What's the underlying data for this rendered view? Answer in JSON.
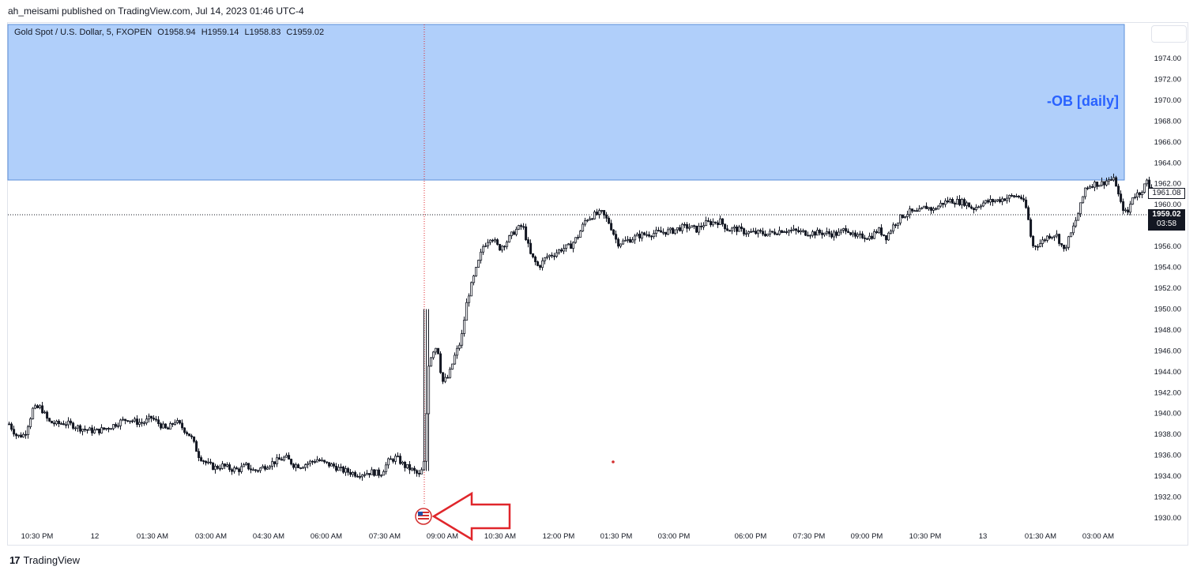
{
  "header": {
    "published_text": "ah_meisami published on TradingView.com, Jul 14, 2023 01:46 UTC-4"
  },
  "legend": {
    "symbol": "Gold Spot / U.S. Dollar, 5, FXOPEN",
    "open": "O1958.94",
    "high": "H1959.14",
    "low": "L1958.83",
    "close": "C1959.02"
  },
  "annotation": {
    "zone_label": "-OB [daily]"
  },
  "price_badges": {
    "current_price": "1959.02",
    "countdown": "03:58",
    "secondary_price": "1961.08"
  },
  "footer": {
    "brand": "TradingView"
  },
  "colors": {
    "zone_fill": "#b0cffa",
    "zone_border": "#5b8fd8",
    "zone_label": "#2962ff",
    "arrow": "#e0262b",
    "candle": "#131722",
    "event_marker": "#d32f2f"
  },
  "chart_data": {
    "type": "candlestick",
    "y_ticks": [
      "1930.00",
      "1932.00",
      "1934.00",
      "1936.00",
      "1938.00",
      "1940.00",
      "1942.00",
      "1944.00",
      "1946.00",
      "1948.00",
      "1950.00",
      "1952.00",
      "1954.00",
      "1956.00",
      "1958.00",
      "1960.00",
      "1962.00",
      "1964.00",
      "1966.00",
      "1968.00",
      "1970.00",
      "1972.00",
      "1974.00"
    ],
    "ylim": [
      1929.5,
      1975.5
    ],
    "x_ticks": [
      "10:30 PM",
      "12",
      "01:30 AM",
      "03:00 AM",
      "04:30 AM",
      "06:00 AM",
      "07:30 AM",
      "09:00 AM",
      "10:30 AM",
      "12:00 PM",
      "01:30 PM",
      "03:00 PM",
      "06:00 PM",
      "07:30 PM",
      "09:00 PM",
      "10:30 PM",
      "13",
      "01:30 AM",
      "03:00 AM"
    ],
    "zone": {
      "label": "-OB [daily]",
      "low": 1962.4,
      "high": 1977.0
    },
    "current_price": 1959.02,
    "event_x_label": "09:00 AM",
    "grid": false,
    "close_path": [
      [
        0,
        1939.0
      ],
      [
        10,
        1937.8
      ],
      [
        20,
        1938.0
      ],
      [
        30,
        1940.4
      ],
      [
        40,
        1940.6
      ],
      [
        50,
        1939.2
      ],
      [
        60,
        1939.0
      ],
      [
        70,
        1939.1
      ],
      [
        80,
        1938.9
      ],
      [
        90,
        1938.6
      ],
      [
        100,
        1938.4
      ],
      [
        110,
        1938.3
      ],
      [
        120,
        1938.5
      ],
      [
        130,
        1938.8
      ],
      [
        140,
        1939.2
      ],
      [
        150,
        1939.5
      ],
      [
        160,
        1939.2
      ],
      [
        170,
        1939.1
      ],
      [
        180,
        1939.6
      ],
      [
        190,
        1939.0
      ],
      [
        200,
        1938.4
      ],
      [
        210,
        1939.3
      ],
      [
        220,
        1938.6
      ],
      [
        230,
        1937.8
      ],
      [
        240,
        1936.0
      ],
      [
        250,
        1935.2
      ],
      [
        260,
        1934.8
      ],
      [
        270,
        1935.0
      ],
      [
        280,
        1934.7
      ],
      [
        290,
        1934.6
      ],
      [
        300,
        1935.0
      ],
      [
        310,
        1934.5
      ],
      [
        320,
        1934.8
      ],
      [
        330,
        1935.2
      ],
      [
        340,
        1935.5
      ],
      [
        350,
        1935.8
      ],
      [
        360,
        1935.1
      ],
      [
        370,
        1935.0
      ],
      [
        380,
        1935.3
      ],
      [
        390,
        1935.6
      ],
      [
        400,
        1935.2
      ],
      [
        410,
        1935.0
      ],
      [
        420,
        1934.6
      ],
      [
        430,
        1934.4
      ],
      [
        440,
        1934.2
      ],
      [
        450,
        1934.3
      ],
      [
        460,
        1934.4
      ],
      [
        470,
        1934.2
      ],
      [
        480,
        1935.4
      ],
      [
        490,
        1935.8
      ],
      [
        500,
        1935.0
      ],
      [
        510,
        1934.6
      ],
      [
        520,
        1934.0
      ],
      [
        526,
        1935.5
      ],
      [
        530,
        1944.5
      ],
      [
        536,
        1946.0
      ],
      [
        542,
        1946.5
      ],
      [
        548,
        1943.0
      ],
      [
        556,
        1943.5
      ],
      [
        564,
        1945.5
      ],
      [
        572,
        1947.0
      ],
      [
        580,
        1951.0
      ],
      [
        590,
        1953.5
      ],
      [
        600,
        1956.0
      ],
      [
        610,
        1957.0
      ],
      [
        620,
        1955.8
      ],
      [
        630,
        1956.5
      ],
      [
        640,
        1957.5
      ],
      [
        650,
        1958.0
      ],
      [
        660,
        1955.2
      ],
      [
        670,
        1954.0
      ],
      [
        680,
        1955.0
      ],
      [
        690,
        1955.3
      ],
      [
        700,
        1955.8
      ],
      [
        710,
        1956.0
      ],
      [
        720,
        1957.0
      ],
      [
        730,
        1958.6
      ],
      [
        740,
        1959.0
      ],
      [
        750,
        1959.2
      ],
      [
        760,
        1958.2
      ],
      [
        770,
        1956.3
      ],
      [
        780,
        1956.5
      ],
      [
        790,
        1956.8
      ],
      [
        800,
        1957.1
      ],
      [
        810,
        1957.2
      ],
      [
        820,
        1957.3
      ],
      [
        830,
        1957.4
      ],
      [
        840,
        1957.5
      ],
      [
        850,
        1957.8
      ],
      [
        860,
        1957.9
      ],
      [
        870,
        1957.6
      ],
      [
        880,
        1958.2
      ],
      [
        890,
        1958.3
      ],
      [
        900,
        1958.4
      ],
      [
        910,
        1957.6
      ],
      [
        920,
        1957.7
      ],
      [
        930,
        1957.4
      ],
      [
        940,
        1957.3
      ],
      [
        950,
        1957.3
      ],
      [
        960,
        1957.2
      ],
      [
        970,
        1957.4
      ],
      [
        980,
        1957.6
      ],
      [
        990,
        1957.5
      ],
      [
        1000,
        1957.4
      ],
      [
        1010,
        1957.3
      ],
      [
        1020,
        1957.3
      ],
      [
        1030,
        1957.3
      ],
      [
        1040,
        1957.2
      ],
      [
        1050,
        1957.2
      ],
      [
        1060,
        1957.8
      ],
      [
        1070,
        1956.8
      ],
      [
        1080,
        1957.0
      ],
      [
        1090,
        1956.9
      ],
      [
        1100,
        1957.6
      ],
      [
        1110,
        1956.9
      ],
      [
        1120,
        1958.1
      ],
      [
        1130,
        1958.9
      ],
      [
        1140,
        1959.3
      ],
      [
        1150,
        1959.2
      ],
      [
        1160,
        1959.8
      ],
      [
        1170,
        1959.5
      ],
      [
        1180,
        1960.1
      ],
      [
        1190,
        1960.4
      ],
      [
        1200,
        1960.3
      ],
      [
        1210,
        1960.2
      ],
      [
        1220,
        1959.6
      ],
      [
        1230,
        1960.1
      ],
      [
        1240,
        1960.3
      ],
      [
        1250,
        1960.4
      ],
      [
        1260,
        1960.6
      ],
      [
        1270,
        1960.8
      ],
      [
        1280,
        1960.8
      ],
      [
        1288,
        1959.5
      ],
      [
        1295,
        1956.0
      ],
      [
        1305,
        1956.3
      ],
      [
        1315,
        1957.0
      ],
      [
        1325,
        1957.2
      ],
      [
        1335,
        1955.6
      ],
      [
        1345,
        1957.4
      ],
      [
        1355,
        1959.6
      ],
      [
        1362,
        1961.6
      ],
      [
        1372,
        1962.0
      ],
      [
        1382,
        1962.0
      ],
      [
        1392,
        1962.4
      ],
      [
        1400,
        1962.3
      ],
      [
        1406,
        1960.2
      ],
      [
        1415,
        1959.0
      ],
      [
        1422,
        1960.8
      ],
      [
        1432,
        1961.2
      ],
      [
        1440,
        1962.2
      ],
      [
        1446,
        1961.2
      ],
      [
        1452,
        1961.0
      ]
    ]
  }
}
